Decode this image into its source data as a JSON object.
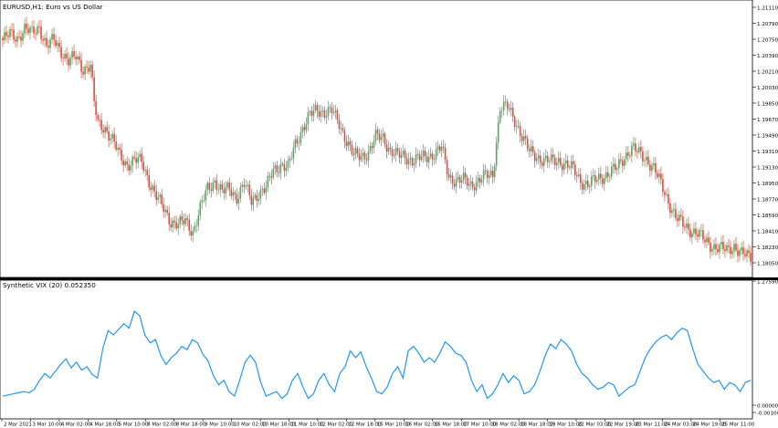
{
  "main_chart": {
    "title": "EURUSD,H1:  Euro vs US Dollar",
    "price_labels": [
      "1.21110",
      "1.20790",
      "1.20750",
      "1.20390",
      "1.20210",
      "1.20030",
      "1.19850",
      "1.19670",
      "1.19490",
      "1.19310",
      "1.19130",
      "1.18950",
      "1.18770",
      "1.18590",
      "1.18410",
      "1.18230",
      "1.18050"
    ],
    "price_range": [
      1.179,
      1.2123
    ],
    "bull_color": "#4caf50",
    "bear_color": "#f44336"
  },
  "indicator": {
    "title": "Synthetic VIX (20) 0.052350",
    "scale_labels": [
      "1.275905",
      "0.000000",
      "-0.001007"
    ],
    "line_color": "#2196f3"
  },
  "time_labels": [
    "2 Mar 2021",
    "3 Mar 10:00",
    "4 Mar 02:00",
    "4 Mar 18:00",
    "5 Mar 10:00",
    "8 Mar 02:00",
    "8 Mar 18:00",
    "9 Mar 10:00",
    "10 Mar 02:00",
    "10 Mar 18:00",
    "11 Mar 10:00",
    "12 Mar 02:00",
    "12 Mar 18:00",
    "15 Mar 10:00",
    "16 Mar 02:00",
    "16 Mar 18:00",
    "17 Mar 10:00",
    "18 Mar 02:00",
    "18 Mar 18:00",
    "19 Mar 10:00",
    "22 Mar 03:00",
    "22 Mar 19:00",
    "23 Mar 11:00",
    "24 Mar 03:00",
    "24 Mar 19:00",
    "25 Mar 11:00"
  ],
  "chart_data": [
    {
      "type": "candlestick",
      "title": "EURUSD,H1:  Euro vs US Dollar",
      "ylim": [
        1.179,
        1.2123
      ],
      "x_ticks": [
        "2 Mar 2021",
        "3 Mar 10:00",
        "4 Mar 02:00",
        "4 Mar 18:00",
        "5 Mar 10:00",
        "8 Mar 02:00",
        "8 Mar 18:00",
        "9 Mar 10:00",
        "10 Mar 02:00",
        "10 Mar 18:00",
        "11 Mar 10:00",
        "12 Mar 02:00",
        "12 Mar 18:00",
        "15 Mar 10:00",
        "16 Mar 02:00",
        "16 Mar 18:00",
        "17 Mar 10:00",
        "18 Mar 02:00",
        "18 Mar 18:00",
        "19 Mar 10:00",
        "22 Mar 03:00",
        "22 Mar 19:00",
        "23 Mar 11:00",
        "24 Mar 03:00",
        "24 Mar 19:00",
        "25 Mar 11:00"
      ],
      "y_ticks": [
        "1.21110",
        "1.20790",
        "1.20750",
        "1.20390",
        "1.20210",
        "1.20030",
        "1.19850",
        "1.19670",
        "1.19490",
        "1.19310",
        "1.19130",
        "1.18950",
        "1.18770",
        "1.18590",
        "1.18410",
        "1.18230",
        "1.18050"
      ],
      "close_path": [
        [
          0,
          1.2078
        ],
        [
          4,
          1.2085
        ],
        [
          8,
          1.2081
        ],
        [
          12,
          1.2092
        ],
        [
          16,
          1.2086
        ],
        [
          20,
          1.2095
        ],
        [
          24,
          1.207
        ],
        [
          28,
          1.2078
        ],
        [
          32,
          1.2065
        ],
        [
          36,
          1.2052
        ],
        [
          40,
          1.2057
        ],
        [
          44,
          1.2043
        ],
        [
          48,
          1.2047
        ],
        [
          50,
          1.2
        ],
        [
          52,
          1.1975
        ],
        [
          56,
          1.197
        ],
        [
          60,
          1.1955
        ],
        [
          64,
          1.1935
        ],
        [
          68,
          1.1925
        ],
        [
          72,
          1.193
        ],
        [
          76,
          1.1928
        ],
        [
          80,
          1.1905
        ],
        [
          84,
          1.1885
        ],
        [
          88,
          1.187
        ],
        [
          92,
          1.1855
        ],
        [
          96,
          1.185
        ],
        [
          100,
          1.1855
        ],
        [
          104,
          1.1842
        ],
        [
          108,
          1.187
        ],
        [
          112,
          1.1895
        ],
        [
          116,
          1.1905
        ],
        [
          120,
          1.189
        ],
        [
          124,
          1.1895
        ],
        [
          128,
          1.1885
        ],
        [
          132,
          1.19
        ],
        [
          136,
          1.188
        ],
        [
          140,
          1.189
        ],
        [
          144,
          1.1895
        ],
        [
          148,
          1.1918
        ],
        [
          152,
          1.1925
        ],
        [
          156,
          1.192
        ],
        [
          160,
          1.195
        ],
        [
          164,
          1.197
        ],
        [
          168,
          1.1985
        ],
        [
          172,
          1.1992
        ],
        [
          176,
          1.199
        ],
        [
          180,
          1.199
        ],
        [
          184,
          1.1975
        ],
        [
          188,
          1.1955
        ],
        [
          192,
          1.1935
        ],
        [
          196,
          1.1935
        ],
        [
          200,
          1.194
        ],
        [
          204,
          1.1958
        ],
        [
          208,
          1.1958
        ],
        [
          212,
          1.1942
        ],
        [
          216,
          1.1935
        ],
        [
          220,
          1.1935
        ],
        [
          224,
          1.193
        ],
        [
          228,
          1.1932
        ],
        [
          232,
          1.1935
        ],
        [
          236,
          1.1938
        ],
        [
          240,
          1.1945
        ],
        [
          244,
          1.191
        ],
        [
          248,
          1.1905
        ],
        [
          252,
          1.1905
        ],
        [
          256,
          1.19
        ],
        [
          260,
          1.1905
        ],
        [
          264,
          1.191
        ],
        [
          268,
          1.1912
        ],
        [
          272,
          1.1995
        ],
        [
          276,
          1.1995
        ],
        [
          280,
          1.198
        ],
        [
          284,
          1.196
        ],
        [
          288,
          1.194
        ],
        [
          292,
          1.1935
        ],
        [
          296,
          1.193
        ],
        [
          300,
          1.1928
        ],
        [
          304,
          1.193
        ],
        [
          308,
          1.1925
        ],
        [
          312,
          1.1918
        ],
        [
          316,
          1.1905
        ],
        [
          320,
          1.19
        ],
        [
          324,
          1.1905
        ],
        [
          328,
          1.191
        ],
        [
          332,
          1.1915
        ],
        [
          336,
          1.192
        ],
        [
          340,
          1.1935
        ],
        [
          344,
          1.1945
        ],
        [
          348,
          1.1938
        ],
        [
          352,
          1.1932
        ],
        [
          356,
          1.192
        ],
        [
          360,
          1.19
        ],
        [
          364,
          1.188
        ],
        [
          368,
          1.186
        ],
        [
          372,
          1.185
        ],
        [
          376,
          1.1845
        ],
        [
          380,
          1.184
        ],
        [
          384,
          1.183
        ],
        [
          388,
          1.1825
        ],
        [
          392,
          1.1822
        ],
        [
          396,
          1.1818
        ],
        [
          400,
          1.1825
        ],
        [
          404,
          1.1815
        ],
        [
          408,
          1.181
        ]
      ]
    },
    {
      "type": "line",
      "title": "Synthetic VIX (20) 0.052350",
      "series": [
        {
          "name": "Synthetic VIX (20)",
          "values": [
            0.08,
            0.09,
            0.1,
            0.11,
            0.12,
            0.11,
            0.14,
            0.22,
            0.28,
            0.24,
            0.3,
            0.36,
            0.41,
            0.33,
            0.38,
            0.31,
            0.34,
            0.27,
            0.24,
            0.5,
            0.66,
            0.62,
            0.67,
            0.72,
            0.68,
            0.83,
            0.79,
            0.62,
            0.55,
            0.58,
            0.44,
            0.36,
            0.42,
            0.46,
            0.52,
            0.49,
            0.58,
            0.55,
            0.45,
            0.39,
            0.26,
            0.18,
            0.22,
            0.12,
            0.08,
            0.22,
            0.38,
            0.44,
            0.38,
            0.2,
            0.08,
            0.1,
            0.12,
            0.06,
            0.1,
            0.22,
            0.28,
            0.16,
            0.06,
            0.1,
            0.22,
            0.28,
            0.18,
            0.12,
            0.28,
            0.34,
            0.48,
            0.42,
            0.47,
            0.34,
            0.24,
            0.12,
            0.1,
            0.16,
            0.28,
            0.34,
            0.24,
            0.48,
            0.52,
            0.46,
            0.38,
            0.42,
            0.38,
            0.46,
            0.56,
            0.52,
            0.46,
            0.44,
            0.38,
            0.22,
            0.12,
            0.18,
            0.06,
            0.1,
            0.18,
            0.28,
            0.2,
            0.26,
            0.22,
            0.1,
            0.12,
            0.18,
            0.3,
            0.44,
            0.54,
            0.5,
            0.58,
            0.54,
            0.48,
            0.36,
            0.28,
            0.24,
            0.18,
            0.14,
            0.16,
            0.2,
            0.18,
            0.08,
            0.12,
            0.16,
            0.18,
            0.3,
            0.42,
            0.5,
            0.56,
            0.6,
            0.62,
            0.58,
            0.64,
            0.68,
            0.66,
            0.5,
            0.36,
            0.3,
            0.24,
            0.2,
            0.22,
            0.14,
            0.2,
            0.18,
            0.12,
            0.2,
            0.22
          ]
        }
      ]
    }
  ]
}
